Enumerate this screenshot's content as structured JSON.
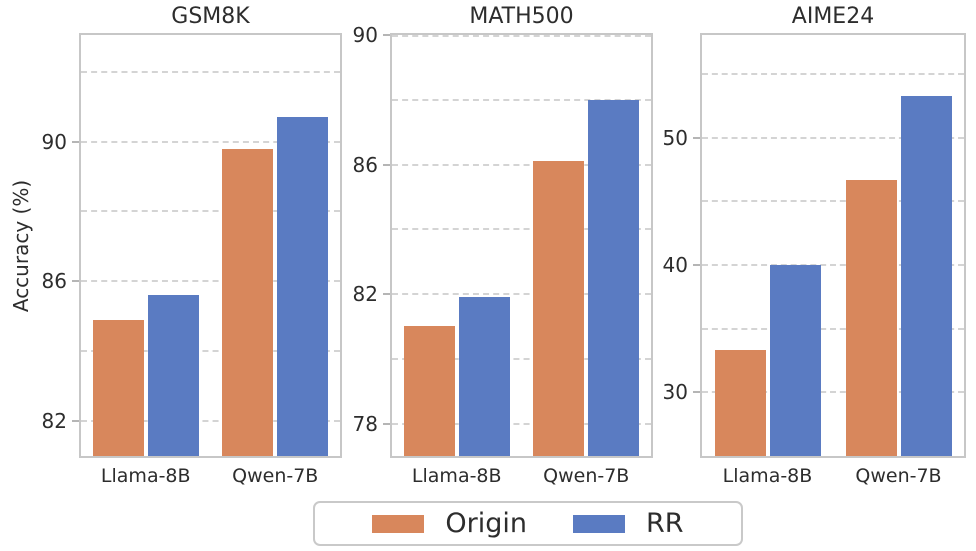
{
  "figure": {
    "ylabel": "Accuracy (%)",
    "background": "#ffffff",
    "text_color": "#2d2d2d",
    "grid_color": "#d4d4d4",
    "legend": {
      "position": "bottom-center",
      "items": [
        {
          "label": "Origin",
          "color": "#d8875c"
        },
        {
          "label": "RR",
          "color": "#5a7bc2"
        }
      ]
    }
  },
  "chart_data": [
    {
      "type": "bar",
      "title": "GSM8K",
      "categories": [
        "Llama-8B",
        "Qwen-7B"
      ],
      "series": [
        {
          "name": "Origin",
          "color": "#d8875c",
          "values": [
            84.9,
            89.8
          ]
        },
        {
          "name": "RR",
          "color": "#5a7bc2",
          "values": [
            85.6,
            90.7
          ]
        }
      ],
      "xlabel": "",
      "ylabel": "Accuracy (%)",
      "ylim": [
        81,
        93.05
      ],
      "yticks": [
        82,
        86,
        90
      ],
      "gridlines": [
        82,
        84,
        86,
        88,
        90,
        92
      ],
      "grid_style": "dashed"
    },
    {
      "type": "bar",
      "title": "MATH500",
      "categories": [
        "Llama-8B",
        "Qwen-7B"
      ],
      "series": [
        {
          "name": "Origin",
          "color": "#d8875c",
          "values": [
            81.0,
            86.1
          ]
        },
        {
          "name": "RR",
          "color": "#5a7bc2",
          "values": [
            81.9,
            88.0
          ]
        }
      ],
      "xlabel": "",
      "ylabel": "Accuracy (%)",
      "ylim": [
        77,
        90
      ],
      "yticks": [
        78,
        82,
        86,
        90
      ],
      "gridlines": [
        78,
        80,
        82,
        84,
        86,
        88,
        90
      ],
      "grid_style": "dashed"
    },
    {
      "type": "bar",
      "title": "AIME24",
      "categories": [
        "Llama-8B",
        "Qwen-7B"
      ],
      "series": [
        {
          "name": "Origin",
          "color": "#d8875c",
          "values": [
            33.3,
            46.7
          ]
        },
        {
          "name": "RR",
          "color": "#5a7bc2",
          "values": [
            40.0,
            53.3
          ]
        }
      ],
      "xlabel": "",
      "ylabel": "Accuracy (%)",
      "ylim": [
        25,
        58.05
      ],
      "yticks": [
        30,
        40,
        50
      ],
      "gridlines": [
        30,
        35,
        40,
        45,
        50,
        55
      ],
      "grid_style": "dashed"
    }
  ]
}
